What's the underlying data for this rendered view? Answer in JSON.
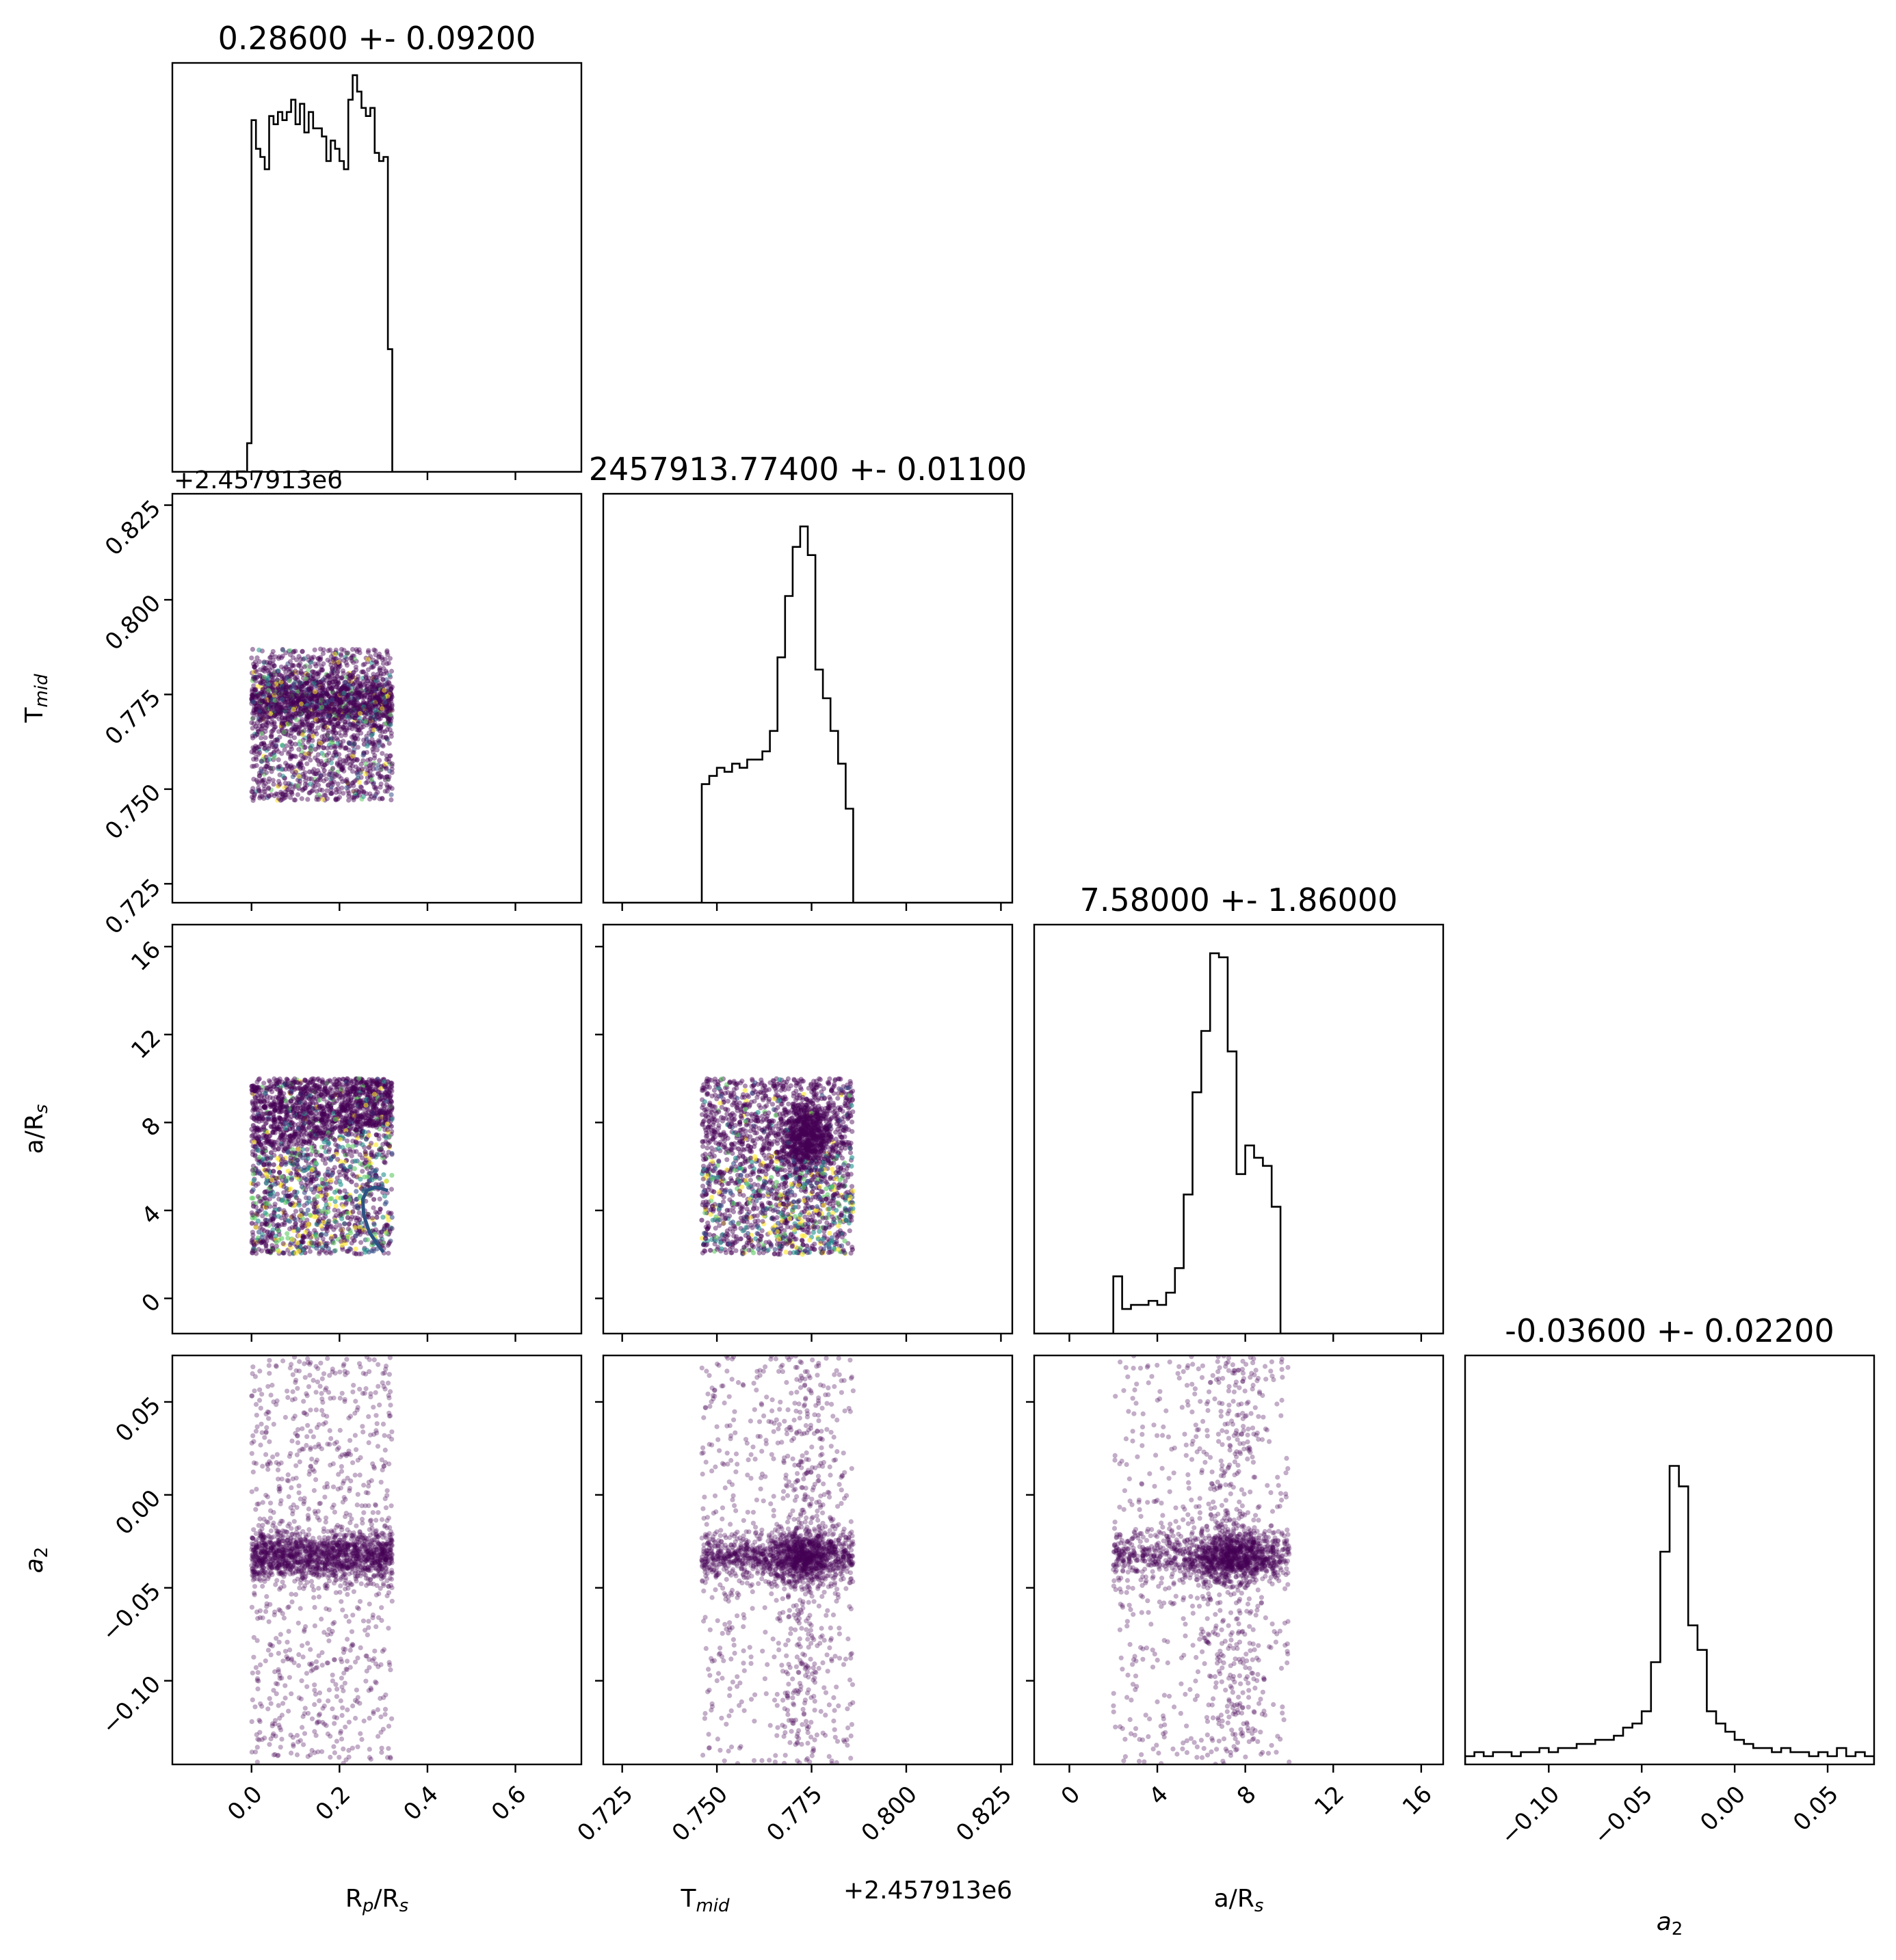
{
  "chart_data": {
    "type": "scatter",
    "layout": "corner-plot",
    "params": [
      {
        "name": "R_p/R_s",
        "label_main": "R",
        "label_sub1": "p",
        "label_mid": "/R",
        "label_sub2": "s",
        "title": "0.28600 +- 0.09200",
        "range": [
          -0.18,
          0.75
        ],
        "ticks": [
          0.0,
          0.2,
          0.4,
          0.6
        ],
        "tick_labels": [
          "0.0",
          "0.2",
          "0.4",
          "0.6"
        ],
        "hist_edges": [
          -0.01,
          0.0,
          0.01,
          0.02,
          0.03,
          0.04,
          0.05,
          0.06,
          0.07,
          0.08,
          0.09,
          0.1,
          0.11,
          0.12,
          0.13,
          0.14,
          0.15,
          0.16,
          0.17,
          0.18,
          0.19,
          0.2,
          0.21,
          0.22,
          0.23,
          0.24,
          0.25,
          0.26,
          0.27,
          0.28,
          0.29,
          0.3,
          0.31,
          0.32,
          0.33
        ],
        "hist_counts": [
          0.07,
          0.86,
          0.79,
          0.77,
          0.74,
          0.87,
          0.85,
          0.88,
          0.86,
          0.88,
          0.91,
          0.85,
          0.9,
          0.83,
          0.88,
          0.84,
          0.84,
          0.82,
          0.76,
          0.81,
          0.79,
          0.76,
          0.74,
          0.91,
          0.97,
          0.93,
          0.89,
          0.87,
          0.89,
          0.78,
          0.76,
          0.77,
          0.3,
          0.0
        ]
      },
      {
        "name": "T_mid",
        "label_main": "T",
        "label_sub1": "mid",
        "label_mid": "",
        "label_sub2": "",
        "title": "2457913.77400 +- 0.01100",
        "offset": "+2.457913e6",
        "range": [
          0.72,
          0.828
        ],
        "ticks": [
          0.725,
          0.75,
          0.775,
          0.8,
          0.825
        ],
        "tick_labels": [
          "0.725",
          "0.750",
          "0.775",
          "0.800",
          "0.825"
        ],
        "hist_edges": [
          0.746,
          0.748,
          0.75,
          0.752,
          0.754,
          0.756,
          0.758,
          0.76,
          0.762,
          0.764,
          0.766,
          0.768,
          0.77,
          0.772,
          0.774,
          0.776,
          0.778,
          0.78,
          0.782,
          0.784,
          0.786
        ],
        "hist_counts": [
          0.29,
          0.31,
          0.33,
          0.32,
          0.34,
          0.33,
          0.35,
          0.35,
          0.37,
          0.42,
          0.6,
          0.75,
          0.87,
          0.92,
          0.85,
          0.57,
          0.5,
          0.42,
          0.34,
          0.23
        ]
      },
      {
        "name": "a/R_s",
        "label_main": "a/R",
        "label_sub1": "s",
        "label_mid": "",
        "label_sub2": "",
        "title": "7.58000 +- 1.86000",
        "range": [
          -1.6,
          17.0
        ],
        "ticks": [
          0,
          4,
          8,
          12,
          16
        ],
        "tick_labels": [
          "0",
          "4",
          "8",
          "12",
          "16"
        ],
        "hist_edges": [
          2.0,
          2.4,
          2.8,
          3.2,
          3.6,
          4.0,
          4.4,
          4.8,
          5.2,
          5.6,
          6.0,
          6.4,
          6.8,
          7.2,
          7.6,
          8.0,
          8.4,
          8.8,
          9.2,
          9.6,
          10.0
        ],
        "hist_counts": [
          0.14,
          0.06,
          0.07,
          0.07,
          0.08,
          0.07,
          0.1,
          0.16,
          0.34,
          0.59,
          0.74,
          0.93,
          0.92,
          0.69,
          0.39,
          0.46,
          0.43,
          0.41,
          0.31,
          0.0
        ]
      },
      {
        "name": "a_2",
        "label_main": "a",
        "label_sub1": "2",
        "label_mid": "",
        "label_sub2": "",
        "title": "-0.03600 +- 0.02200",
        "range": [
          -0.145,
          0.075
        ],
        "ticks": [
          -0.1,
          -0.05,
          0.0,
          0.05
        ],
        "tick_labels": [
          "−0.10",
          "−0.05",
          "0.00",
          "0.05"
        ],
        "hist_edges": [
          -0.145,
          -0.14,
          -0.135,
          -0.13,
          -0.125,
          -0.12,
          -0.115,
          -0.11,
          -0.105,
          -0.1,
          -0.095,
          -0.09,
          -0.085,
          -0.08,
          -0.075,
          -0.07,
          -0.065,
          -0.06,
          -0.055,
          -0.05,
          -0.045,
          -0.04,
          -0.035,
          -0.03,
          -0.025,
          -0.02,
          -0.015,
          -0.01,
          -0.005,
          0.0,
          0.005,
          0.01,
          0.015,
          0.02,
          0.025,
          0.03,
          0.035,
          0.04,
          0.045,
          0.05,
          0.055,
          0.06,
          0.065,
          0.07,
          0.075
        ],
        "hist_counts": [
          0.02,
          0.03,
          0.02,
          0.03,
          0.03,
          0.02,
          0.03,
          0.03,
          0.04,
          0.03,
          0.04,
          0.04,
          0.05,
          0.05,
          0.06,
          0.06,
          0.07,
          0.09,
          0.1,
          0.13,
          0.25,
          0.52,
          0.73,
          0.68,
          0.34,
          0.28,
          0.13,
          0.1,
          0.08,
          0.06,
          0.05,
          0.04,
          0.04,
          0.03,
          0.04,
          0.03,
          0.03,
          0.02,
          0.03,
          0.02,
          0.04,
          0.02,
          0.03,
          0.02
        ]
      }
    ],
    "scatter_note": {
      "samples": [
        {
          "x": "R_p/R_s",
          "x_range": [
            0.0,
            0.32
          ],
          "y": "T_mid",
          "y_range": [
            0.747,
            0.787
          ]
        },
        {
          "x": "R_p/R_s",
          "x_range": [
            0.0,
            0.32
          ],
          "y": "a/R_s",
          "y_range": [
            2.0,
            10.0
          ]
        },
        {
          "x": "T_mid",
          "x_range": [
            0.746,
            0.786
          ],
          "y": "a/R_s",
          "y_range": [
            2.0,
            10.0
          ]
        },
        {
          "x": "R_p/R_s",
          "x_range": [
            0.0,
            0.32
          ],
          "y": "a_2",
          "y_range": [
            -0.145,
            0.075
          ]
        },
        {
          "x": "T_mid",
          "x_range": [
            0.746,
            0.786
          ],
          "y": "a_2",
          "y_range": [
            -0.145,
            0.075
          ]
        },
        {
          "x": "a/R_s",
          "x_range": [
            2.0,
            10.0
          ],
          "y": "a_2",
          "y_range": [
            -0.145,
            0.075
          ]
        }
      ]
    },
    "colors": {
      "points_main": "#440154",
      "points_colormap": [
        "#440154",
        "#3b528b",
        "#21918c",
        "#5ec962",
        "#fde725"
      ],
      "contour": "#2c5282",
      "hist": "#000000"
    },
    "grid": false
  }
}
